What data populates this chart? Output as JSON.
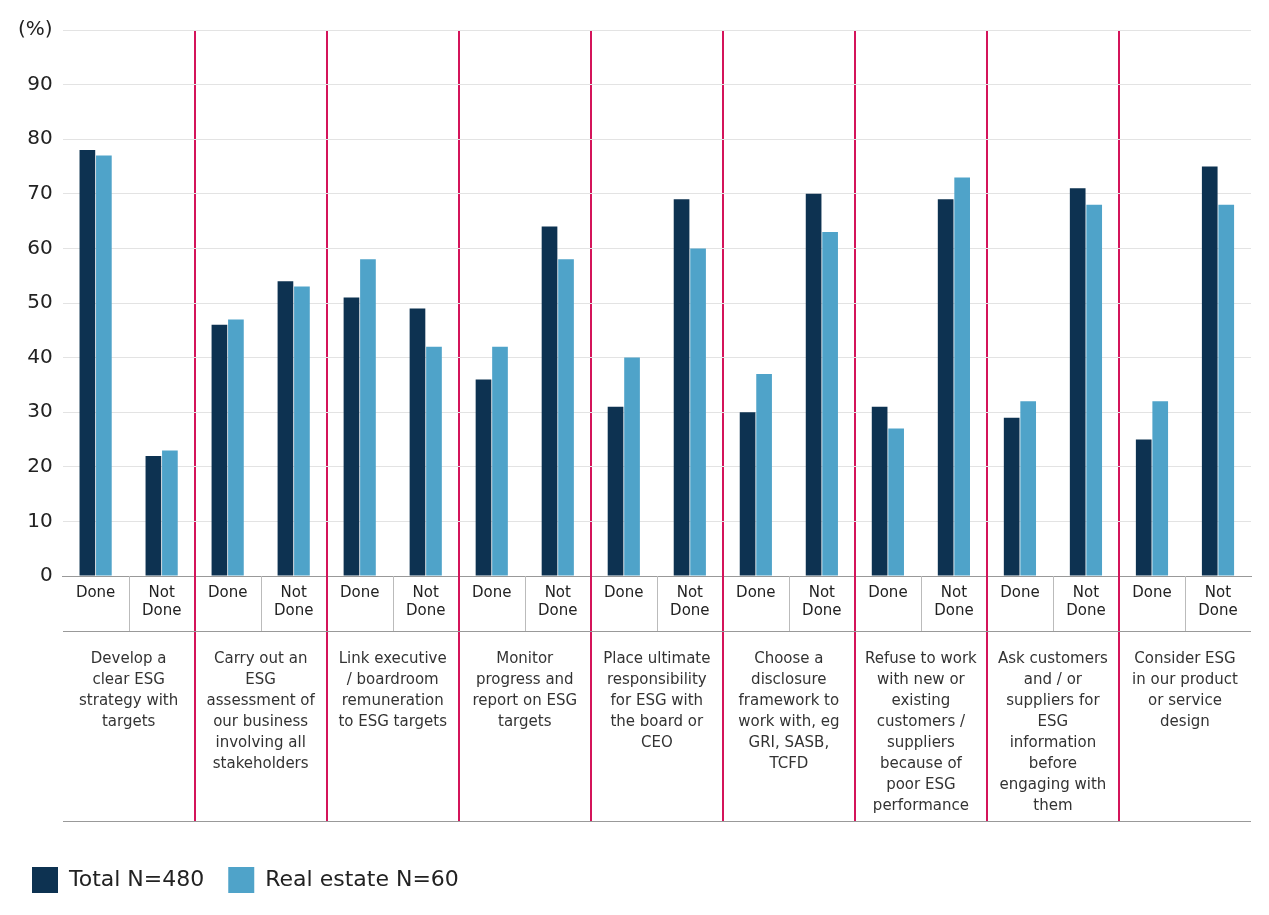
{
  "chart_data": {
    "type": "bar",
    "categories": [
      "Done",
      "Not Done",
      "Done",
      "Not Done",
      "Done",
      "Not Done",
      "Done",
      "Not Done",
      "Done",
      "Not Done",
      "Done",
      "Not Done",
      "Done",
      "Not Done",
      "Done",
      "Not Done",
      "Done",
      "Not Done"
    ],
    "series": [
      {
        "name": "Total N=480",
        "color": "#0d3251",
        "values": [
          78,
          22,
          46,
          54,
          51,
          49,
          36,
          64,
          31,
          69,
          30,
          70,
          31,
          69,
          29,
          71,
          25,
          75
        ]
      },
      {
        "name": "Real estate N=60",
        "color": "#4fa3c9",
        "values": [
          77,
          23,
          47,
          53,
          58,
          42,
          42,
          58,
          40,
          60,
          37,
          63,
          27,
          73,
          32,
          68,
          32,
          68
        ]
      }
    ],
    "ylim": [
      0,
      100
    ],
    "yticks": [
      0,
      10,
      20,
      30,
      40,
      50,
      60,
      70,
      80,
      90,
      {
        "value": 100,
        "label": "(%)"
      }
    ],
    "grid": true,
    "legend": "bottom left",
    "annotations": [
      "Develop a clear ESG strategy with targets",
      "Carry out an ESG assessment of our business involving all stakeholders",
      "Link executive / boardroom remuneration to ESG targets",
      "Monitor progress and report on ESG targets",
      "Place ultimate responsibility for ESG with the board or CEO",
      "Choose a disclosure framework to work with, eg GRI, SASB, TCFD",
      "Refuse to work with new or existing customers / suppliers because of poor ESG performance",
      "Ask customers and / or suppliers for ESG information before engaging with them",
      "Consider ESG in our product or service design"
    ]
  }
}
